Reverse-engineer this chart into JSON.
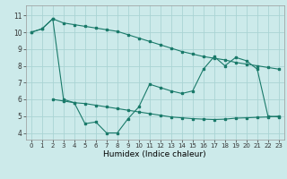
{
  "xlabel": "Humidex (Indice chaleur)",
  "background_color": "#cceaea",
  "grid_color": "#aad4d4",
  "line_color": "#1a7a6a",
  "x_ticks": [
    0,
    1,
    2,
    3,
    4,
    5,
    6,
    7,
    8,
    9,
    10,
    11,
    12,
    13,
    14,
    15,
    16,
    17,
    18,
    19,
    20,
    21,
    22,
    23
  ],
  "y_ticks": [
    4,
    5,
    6,
    7,
    8,
    9,
    10,
    11
  ],
  "ylim": [
    3.6,
    11.6
  ],
  "xlim": [
    -0.5,
    23.5
  ],
  "series1_x": [
    0,
    1,
    2,
    3,
    4,
    5,
    6,
    7,
    8,
    9,
    10,
    11,
    12,
    13,
    14,
    15,
    16,
    17,
    18,
    19,
    20,
    21,
    22,
    23
  ],
  "series1_y": [
    10.0,
    10.2,
    10.8,
    10.55,
    10.45,
    10.35,
    10.25,
    10.15,
    10.05,
    9.85,
    9.65,
    9.45,
    9.25,
    9.05,
    8.85,
    8.7,
    8.55,
    8.45,
    8.35,
    8.2,
    8.1,
    8.0,
    7.9,
    7.8
  ],
  "series2_x": [
    0,
    1,
    2,
    3,
    4,
    5,
    6,
    7,
    8,
    9,
    10,
    11,
    12,
    13,
    14,
    15,
    16,
    17,
    18,
    19,
    20,
    21,
    22,
    23
  ],
  "series2_y": [
    10.0,
    10.2,
    10.8,
    6.0,
    5.8,
    4.55,
    4.65,
    4.0,
    4.0,
    4.85,
    5.55,
    6.9,
    6.7,
    6.5,
    6.35,
    6.5,
    7.8,
    8.55,
    8.0,
    8.5,
    8.3,
    7.8,
    5.0,
    4.95
  ],
  "series3_x": [
    2,
    3,
    4,
    5,
    6,
    7,
    8,
    9,
    10,
    11,
    12,
    13,
    14,
    15,
    16,
    17,
    18,
    19,
    20,
    21,
    22,
    23
  ],
  "series3_y": [
    6.0,
    5.9,
    5.8,
    5.75,
    5.65,
    5.55,
    5.45,
    5.35,
    5.25,
    5.15,
    5.05,
    4.95,
    4.9,
    4.85,
    4.82,
    4.8,
    4.82,
    4.88,
    4.9,
    4.93,
    4.95,
    5.0
  ]
}
